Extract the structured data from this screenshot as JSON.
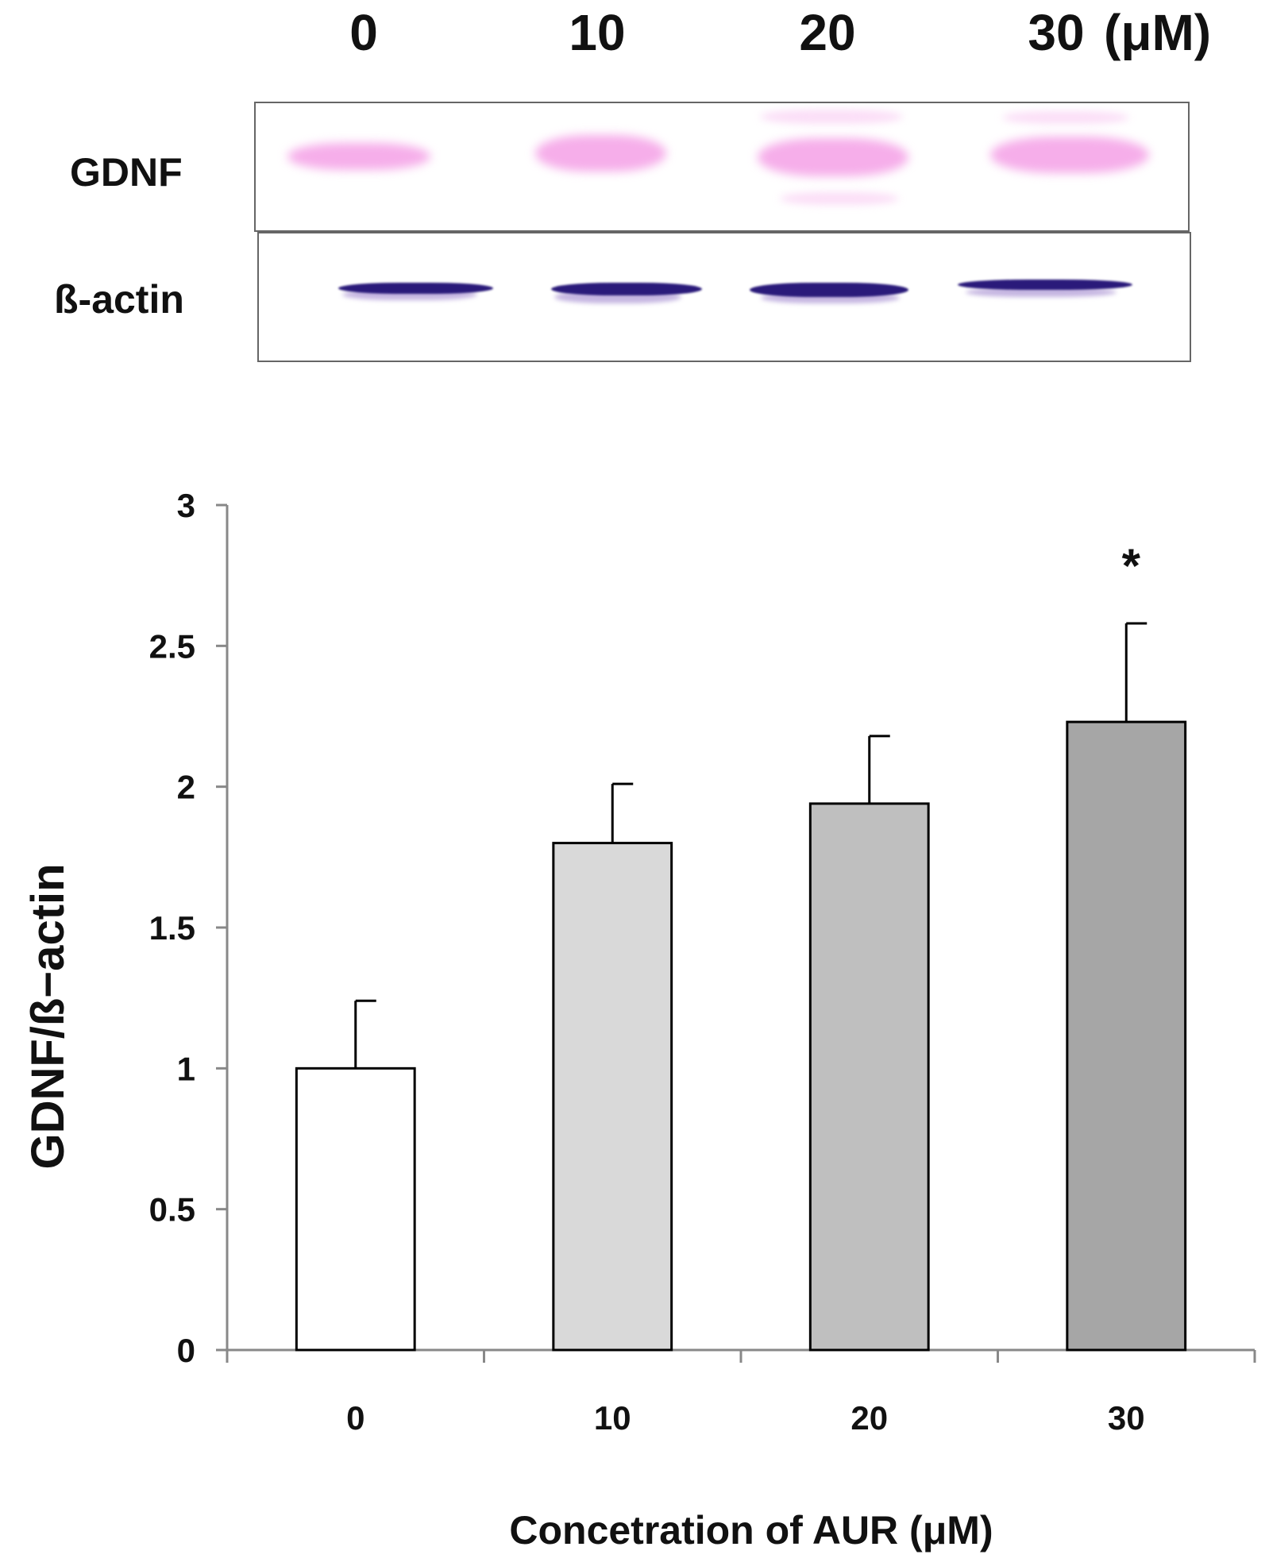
{
  "blot": {
    "lane_labels": [
      "0",
      "10",
      "20",
      "30"
    ],
    "unit": "(μM)",
    "rows": [
      "GDNF",
      "ß-actin"
    ]
  },
  "chart_data": {
    "type": "bar",
    "categories": [
      "0",
      "10",
      "20",
      "30"
    ],
    "values": [
      1.0,
      1.8,
      1.94,
      2.23
    ],
    "errors": [
      0.24,
      0.21,
      0.24,
      0.35
    ],
    "annotations": [
      "",
      "",
      "",
      "*"
    ],
    "bar_colors": [
      "#ffffff",
      "#d9d9d9",
      "#bfbfbf",
      "#a6a6a6"
    ],
    "title": "",
    "xlabel": "Concetration of AUR (μM)",
    "ylabel": "GDNF/ß−actin",
    "ylim": [
      0,
      3
    ],
    "yticks": [
      "0",
      "0.5",
      "1",
      "1.5",
      "2",
      "2.5",
      "3"
    ],
    "grid": false
  }
}
